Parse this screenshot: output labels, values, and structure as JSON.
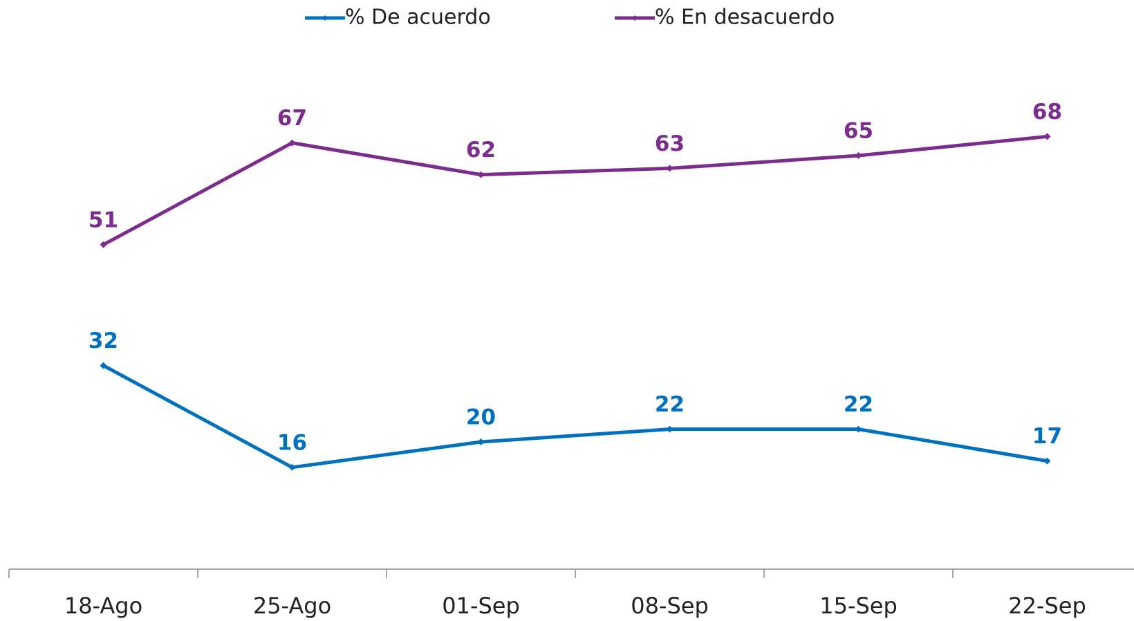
{
  "chart_data": {
    "type": "line",
    "categories": [
      "18-Ago",
      "25-Ago",
      "01-Sep",
      "08-Sep",
      "15-Sep",
      "22-Sep"
    ],
    "series": [
      {
        "name": "% De acuerdo",
        "color": "#0070c0",
        "values": [
          32,
          16,
          20,
          22,
          22,
          17
        ]
      },
      {
        "name": "% En desacuerdo",
        "color": "#7b2c8c",
        "values": [
          51,
          67,
          62,
          63,
          65,
          68
        ]
      }
    ],
    "ylim": [
      0,
      85
    ],
    "legend": "top"
  }
}
